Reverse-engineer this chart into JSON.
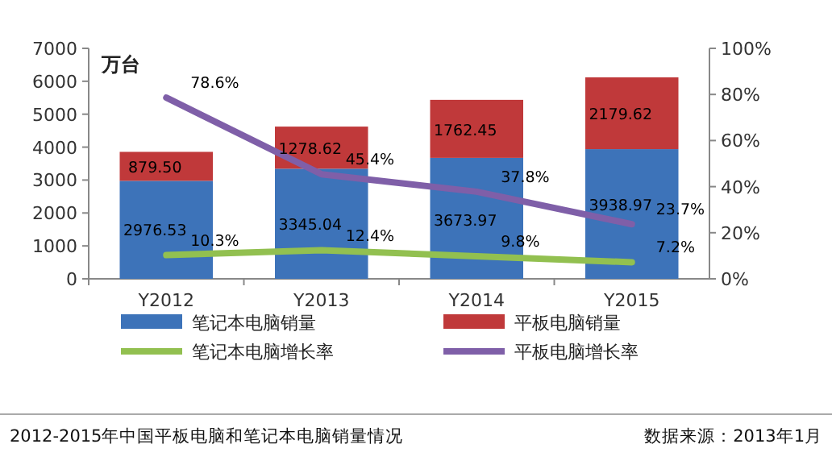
{
  "chart_data": {
    "type": "bar",
    "stacked": true,
    "categories": [
      "Y2012",
      "Y2013",
      "Y2014",
      "Y2015"
    ],
    "ylabel": "万台",
    "ylim": [
      0,
      7000
    ],
    "yticks": [
      0,
      1000,
      2000,
      3000,
      4000,
      5000,
      6000,
      7000
    ],
    "y2lim": [
      0,
      100
    ],
    "y2ticks": [
      {
        "value": 0,
        "label": "0%"
      },
      {
        "value": 20,
        "label": "20%"
      },
      {
        "value": 40,
        "label": "40%"
      },
      {
        "value": 60,
        "label": "60%"
      },
      {
        "value": 80,
        "label": "80%"
      },
      {
        "value": 100,
        "label": "100%"
      }
    ],
    "legend": "bottom",
    "grid": false,
    "marker": "none",
    "series": [
      {
        "name": "笔记本电脑销量",
        "color": "#3d73b9",
        "values": [
          2976.53,
          3345.04,
          3673.97,
          3938.97
        ],
        "value_labels": [
          "2976.53",
          "3345.04",
          "3673.97",
          "3938.97"
        ]
      },
      {
        "name": "平板电脑销量",
        "color": "#c0393a",
        "values": [
          879.5,
          1278.62,
          1762.45,
          2179.62
        ],
        "value_labels": [
          "879.50",
          "1278.62",
          "1762.45",
          "2179.62"
        ]
      },
      {
        "name": "笔记本电脑增长率",
        "type": "line",
        "axis": "y2",
        "color": "#92c050",
        "values": [
          10.3,
          12.4,
          9.8,
          7.2
        ],
        "value_labels": [
          "10.3%",
          "12.4%",
          "9.8%",
          "7.2%"
        ]
      },
      {
        "name": "平板电脑增长率",
        "type": "line",
        "axis": "y2",
        "color": "#7f5fa8",
        "values": [
          78.6,
          45.4,
          37.8,
          23.7
        ],
        "value_labels": [
          "78.6%",
          "45.4%",
          "37.8%",
          "23.7%"
        ]
      }
    ],
    "annotations": [
      "2012-2015年中国平板电脑和笔记本电脑销量情况",
      "数据来源：2013年1月"
    ]
  }
}
